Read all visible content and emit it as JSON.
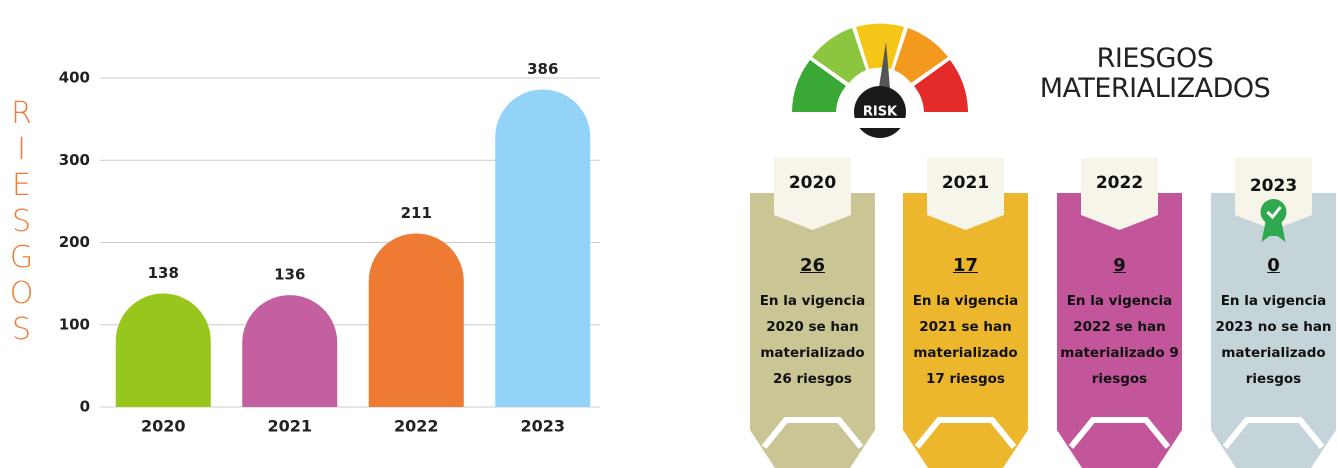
{
  "chart_data": {
    "type": "bar",
    "y_label": "RIESGOS",
    "categories": [
      "2020",
      "2021",
      "2022",
      "2023"
    ],
    "values": [
      138,
      136,
      211,
      386
    ],
    "colors": [
      "#97c61c",
      "#c45fa0",
      "#ef7a33",
      "#93d3f7"
    ],
    "ylim": [
      0,
      400
    ],
    "yticks": [
      0,
      100,
      200,
      300,
      400
    ],
    "grid": true
  },
  "header": {
    "gauge_label": "RISK",
    "title_lines": [
      "RIESGOS",
      "MATERIALIZADOS"
    ]
  },
  "cards": [
    {
      "year": "2020",
      "count": 26,
      "text": "En la vigencia 2020 se han materializado 26 riesgos",
      "color": "#c9c594"
    },
    {
      "year": "2021",
      "count": 17,
      "text": "En la vigencia 2021 se han materializado 17 riesgos",
      "color": "#ecb72d"
    },
    {
      "year": "2022",
      "count": 9,
      "text": "En la vigencia 2022 se han materializado 9 riesgos",
      "color": "#c3559b"
    },
    {
      "year": "2023",
      "count": 0,
      "text": "En la vigencia 2023 no se han materializado riesgos",
      "color": "#c4d4d8"
    }
  ]
}
